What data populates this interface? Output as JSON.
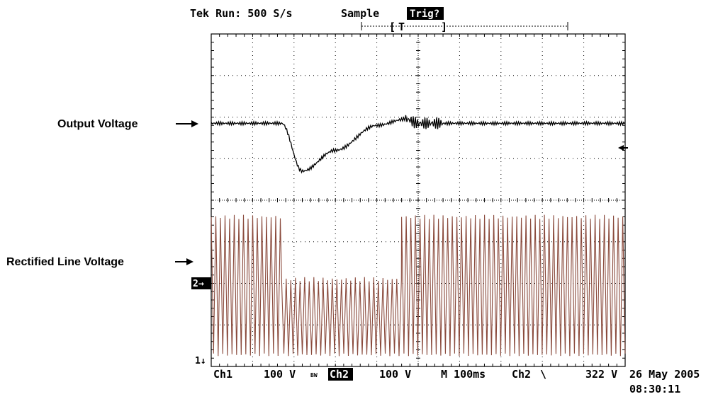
{
  "chart_data": {
    "type": "line",
    "title": "",
    "divisions": {
      "horizontal": 10,
      "vertical": 8
    },
    "header": {
      "status": "Tek Run: 500 S/s",
      "mode": "Sample",
      "trigger": "Trig?",
      "trigger_marker": "T"
    },
    "series": [
      {
        "name": "Output Voltage",
        "channel": "Ch1",
        "color": "#000000",
        "description_points": {
          "x_div": [
            0,
            1.7,
            2.2,
            3.0,
            4.0,
            4.7,
            5.0,
            5.6,
            10
          ],
          "y_div": [
            5.85,
            5.85,
            4.7,
            5.2,
            5.8,
            5.95,
            5.85,
            5.85,
            5.85
          ]
        }
      },
      {
        "name": "Rectified Line Voltage",
        "channel": "Ch2",
        "color": "#8a4a3c",
        "segments": [
          {
            "x_div": [
              0,
              1.7
            ],
            "peak_div": 3.65,
            "trough_div": 0.25
          },
          {
            "x_div": [
              1.7,
              4.6
            ],
            "peak_div": 2.15,
            "trough_div": 0.25
          },
          {
            "x_div": [
              4.6,
              10
            ],
            "peak_div": 3.65,
            "trough_div": 0.25
          }
        ]
      }
    ],
    "annotations": [
      {
        "text": "Output Voltage"
      },
      {
        "text": "Rectified Line Voltage"
      }
    ],
    "markers": {
      "ch2_ground": "2→",
      "ch1_ground": "1↓"
    },
    "footer": {
      "ch1_label": "Ch1",
      "ch1_scale": "100 V",
      "bw_label": "BW",
      "ch2_label": "Ch2",
      "ch2_scale": "100 V",
      "timebase": "M 100ms",
      "trigger_source": "Ch2",
      "trigger_slope": "\\",
      "trigger_level": "322 V",
      "date": "26 May 2005",
      "time": "08:30:11"
    }
  }
}
